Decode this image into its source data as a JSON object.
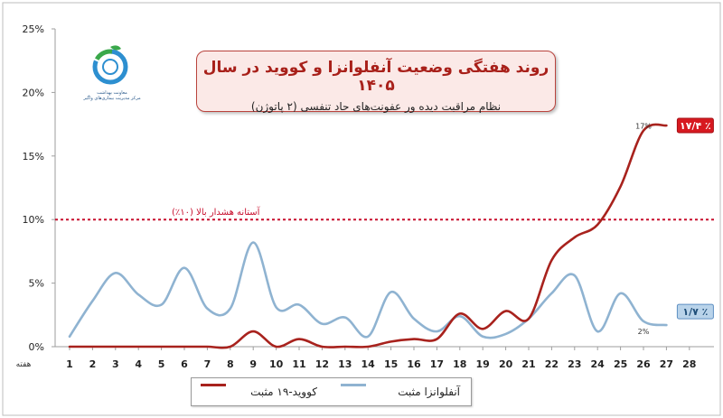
{
  "header": {
    "title": "روند هفتگی وضعیت آنفلوانزا و کووید در سال ۱۴۰۵",
    "subtitle": "نظام مراقبت دیده ور عفونت‌های حاد تنفسی (۲ پاتوژن)"
  },
  "logo": {
    "icon": "health-ministry-logo-icon",
    "caption": "معاونت بهداشت\nمرکز مدیریت بیماری‌های واگیر"
  },
  "chart_data": {
    "type": "line",
    "xlabel": "هفته",
    "ylabel": "",
    "x": [
      1,
      2,
      3,
      4,
      5,
      6,
      7,
      8,
      9,
      10,
      11,
      12,
      13,
      14,
      15,
      16,
      17,
      18,
      19,
      20,
      21,
      22,
      23,
      24,
      25,
      26,
      27,
      28
    ],
    "ylim": [
      0,
      25
    ],
    "y_ticks": [
      "0%",
      "5%",
      "10%",
      "15%",
      "20%",
      "25%"
    ],
    "grid": false,
    "legend_position": "bottom",
    "series": [
      {
        "name": "آنفلوانزا مثبت",
        "color": "#8fb3d1",
        "x": [
          1,
          2,
          3,
          4,
          5,
          6,
          7,
          8,
          9,
          10,
          11,
          12,
          13,
          14,
          15,
          16,
          17,
          18,
          19,
          20,
          21,
          22,
          23,
          24,
          25,
          26,
          27
        ],
        "values": [
          0.8,
          3.6,
          5.8,
          4.1,
          3.3,
          6.2,
          3.0,
          3.0,
          8.2,
          3.1,
          3.3,
          1.8,
          2.3,
          0.8,
          4.3,
          2.2,
          1.2,
          2.4,
          0.8,
          1.0,
          2.2,
          4.2,
          5.6,
          1.2,
          4.2,
          2.0,
          1.7
        ]
      },
      {
        "name": "کووید-۱۹ مثبت",
        "color": "#a8221d",
        "x": [
          1,
          2,
          3,
          4,
          5,
          6,
          7,
          8,
          9,
          10,
          11,
          12,
          13,
          14,
          15,
          16,
          17,
          18,
          19,
          20,
          21,
          22,
          23,
          24,
          25,
          26,
          27
        ],
        "values": [
          0,
          0,
          0,
          0,
          0,
          0,
          0,
          0,
          1.2,
          0,
          0.6,
          0,
          0,
          0,
          0.4,
          0.6,
          0.6,
          2.6,
          1.4,
          2.8,
          2.2,
          6.8,
          8.6,
          9.6,
          12.6,
          17.0,
          17.4
        ]
      }
    ],
    "threshold": {
      "value": 10,
      "label": "آستانه هشدار بالا (۱۰٪)",
      "color": "#c8102e"
    },
    "annotations": [
      {
        "text": "٪ ۱۷/۴",
        "series": "covid",
        "x": 27,
        "y": 17.4,
        "color": "#c8102e",
        "style": "callout"
      },
      {
        "text": "17%",
        "x": 26,
        "y": 17.0,
        "style": "data-label"
      },
      {
        "text": "٪ ۱/۷",
        "series": "flu",
        "x": 27,
        "y": 1.7,
        "color": "#5d8fc2",
        "style": "callout"
      },
      {
        "text": "2%",
        "x": 26,
        "y": 2.0,
        "style": "data-label"
      }
    ]
  }
}
